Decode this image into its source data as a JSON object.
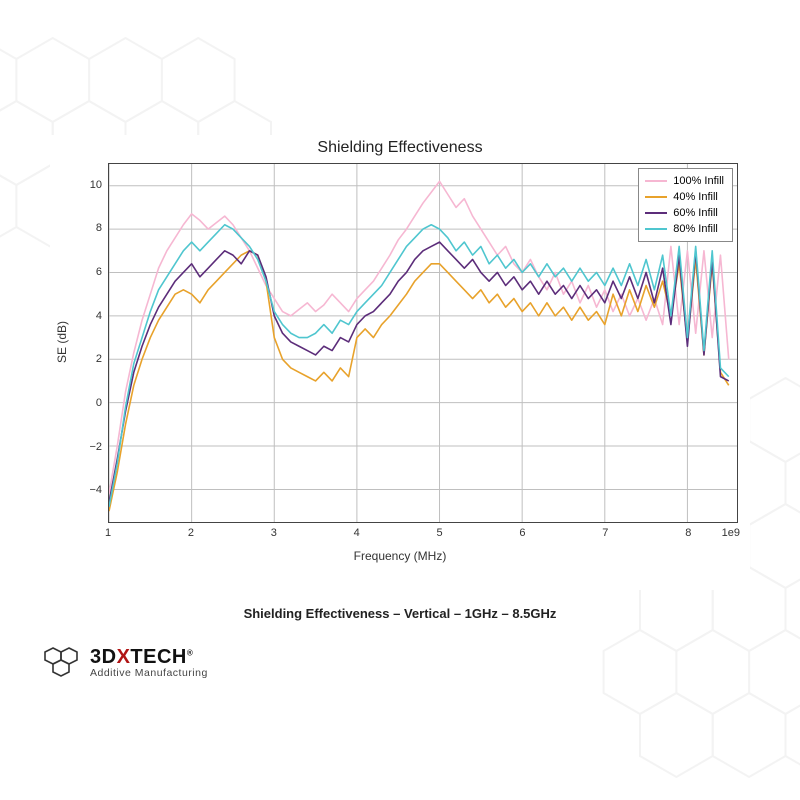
{
  "title": "Shielding Effectiveness",
  "subtitle": "Shielding Effectiveness – Vertical – 1GHz – 8.5GHz",
  "brand": {
    "prefix": "3D",
    "x": "X",
    "suffix": "TECH",
    "reg": "®",
    "tagline": "Additive Manufacturing"
  },
  "chart": {
    "type": "line",
    "xlabel": "Frequency (MHz)",
    "ylabel": "SE (dB)",
    "x_exponent_label": "1e9",
    "xlim": [
      1,
      8.6
    ],
    "ylim": [
      -5.5,
      11
    ],
    "xticks": [
      1,
      2,
      3,
      4,
      5,
      6,
      7,
      8
    ],
    "yticks": [
      -4,
      -2,
      0,
      2,
      4,
      6,
      8,
      10
    ],
    "background_color": "#ffffff",
    "grid_color": "#bfbfbf",
    "axis_color": "#444444",
    "title_fontsize": 16,
    "label_fontsize": 12,
    "tick_fontsize": 11,
    "line_width": 1.6,
    "legend": {
      "position": "upper-right",
      "border_color": "#888888",
      "items": [
        {
          "label": "100% Infill",
          "color": "#f6b7d2"
        },
        {
          "label": "40% Infill",
          "color": "#e8a22b"
        },
        {
          "label": "60% Infill",
          "color": "#5c2d7a"
        },
        {
          "label": "80% Infill",
          "color": "#4fc6cf"
        }
      ]
    },
    "series": [
      {
        "name": "100% Infill",
        "color": "#f6b7d2",
        "x": [
          1.0,
          1.1,
          1.2,
          1.3,
          1.4,
          1.5,
          1.6,
          1.7,
          1.8,
          1.9,
          2.0,
          2.1,
          2.2,
          2.3,
          2.4,
          2.5,
          2.6,
          2.7,
          2.8,
          2.9,
          3.0,
          3.1,
          3.2,
          3.3,
          3.4,
          3.5,
          3.6,
          3.7,
          3.8,
          3.9,
          4.0,
          4.1,
          4.2,
          4.3,
          4.4,
          4.5,
          4.6,
          4.7,
          4.8,
          4.9,
          5.0,
          5.1,
          5.2,
          5.3,
          5.4,
          5.5,
          5.6,
          5.7,
          5.8,
          5.9,
          6.0,
          6.1,
          6.2,
          6.3,
          6.4,
          6.5,
          6.6,
          6.7,
          6.8,
          6.9,
          7.0,
          7.1,
          7.2,
          7.3,
          7.4,
          7.5,
          7.6,
          7.7,
          7.8,
          7.9,
          8.0,
          8.1,
          8.2,
          8.3,
          8.4,
          8.5
        ],
        "y": [
          -4.2,
          -2.0,
          0.5,
          2.3,
          3.8,
          5.0,
          6.2,
          7.0,
          7.6,
          8.2,
          8.7,
          8.4,
          8.0,
          8.3,
          8.6,
          8.2,
          7.6,
          7.0,
          6.2,
          5.4,
          4.8,
          4.2,
          4.0,
          4.3,
          4.6,
          4.2,
          4.5,
          5.0,
          4.6,
          4.2,
          4.8,
          5.2,
          5.6,
          6.2,
          6.8,
          7.5,
          8.0,
          8.6,
          9.2,
          9.7,
          10.2,
          9.6,
          9.0,
          9.4,
          8.6,
          8.0,
          7.4,
          6.8,
          7.2,
          6.4,
          6.0,
          6.6,
          5.8,
          5.2,
          6.0,
          5.0,
          5.6,
          4.6,
          5.4,
          4.4,
          5.2,
          4.2,
          5.0,
          4.0,
          4.8,
          3.8,
          4.8,
          3.6,
          7.2,
          3.6,
          7.0,
          3.2,
          7.0,
          3.0,
          6.8,
          2.0
        ]
      },
      {
        "name": "40% Infill",
        "color": "#e8a22b",
        "x": [
          1.0,
          1.1,
          1.2,
          1.3,
          1.4,
          1.5,
          1.6,
          1.7,
          1.8,
          1.9,
          2.0,
          2.1,
          2.2,
          2.3,
          2.4,
          2.5,
          2.6,
          2.7,
          2.8,
          2.9,
          3.0,
          3.1,
          3.2,
          3.3,
          3.4,
          3.5,
          3.6,
          3.7,
          3.8,
          3.9,
          4.0,
          4.1,
          4.2,
          4.3,
          4.4,
          4.5,
          4.6,
          4.7,
          4.8,
          4.9,
          5.0,
          5.1,
          5.2,
          5.3,
          5.4,
          5.5,
          5.6,
          5.7,
          5.8,
          5.9,
          6.0,
          6.1,
          6.2,
          6.3,
          6.4,
          6.5,
          6.6,
          6.7,
          6.8,
          6.9,
          7.0,
          7.1,
          7.2,
          7.3,
          7.4,
          7.5,
          7.6,
          7.7,
          7.8,
          7.9,
          8.0,
          8.1,
          8.2,
          8.3,
          8.4,
          8.5
        ],
        "y": [
          -5.0,
          -3.2,
          -1.0,
          0.8,
          2.0,
          3.0,
          3.8,
          4.4,
          5.0,
          5.2,
          5.0,
          4.6,
          5.2,
          5.6,
          6.0,
          6.4,
          6.8,
          7.0,
          6.8,
          5.6,
          3.0,
          2.0,
          1.6,
          1.4,
          1.2,
          1.0,
          1.4,
          1.0,
          1.6,
          1.2,
          3.0,
          3.4,
          3.0,
          3.6,
          4.0,
          4.5,
          5.0,
          5.6,
          6.0,
          6.4,
          6.4,
          6.0,
          5.6,
          5.2,
          4.8,
          5.2,
          4.6,
          5.0,
          4.4,
          4.8,
          4.2,
          4.6,
          4.0,
          4.6,
          4.0,
          4.4,
          3.8,
          4.4,
          3.8,
          4.2,
          3.6,
          5.0,
          4.0,
          5.2,
          4.2,
          5.4,
          4.4,
          5.6,
          4.0,
          6.4,
          2.8,
          6.6,
          2.2,
          6.4,
          1.4,
          0.8
        ]
      },
      {
        "name": "60% Infill",
        "color": "#5c2d7a",
        "x": [
          1.0,
          1.1,
          1.2,
          1.3,
          1.4,
          1.5,
          1.6,
          1.7,
          1.8,
          1.9,
          2.0,
          2.1,
          2.2,
          2.3,
          2.4,
          2.5,
          2.6,
          2.7,
          2.8,
          2.9,
          3.0,
          3.1,
          3.2,
          3.3,
          3.4,
          3.5,
          3.6,
          3.7,
          3.8,
          3.9,
          4.0,
          4.1,
          4.2,
          4.3,
          4.4,
          4.5,
          4.6,
          4.7,
          4.8,
          4.9,
          5.0,
          5.1,
          5.2,
          5.3,
          5.4,
          5.5,
          5.6,
          5.7,
          5.8,
          5.9,
          6.0,
          6.1,
          6.2,
          6.3,
          6.4,
          6.5,
          6.6,
          6.7,
          6.8,
          6.9,
          7.0,
          7.1,
          7.2,
          7.3,
          7.4,
          7.5,
          7.6,
          7.7,
          7.8,
          7.9,
          8.0,
          8.1,
          8.2,
          8.3,
          8.4,
          8.5
        ],
        "y": [
          -4.6,
          -2.6,
          -0.4,
          1.4,
          2.6,
          3.6,
          4.4,
          5.0,
          5.6,
          6.0,
          6.4,
          5.8,
          6.2,
          6.6,
          7.0,
          6.8,
          6.4,
          7.0,
          6.8,
          5.8,
          4.0,
          3.2,
          2.8,
          2.6,
          2.4,
          2.2,
          2.6,
          2.4,
          3.0,
          2.8,
          3.6,
          4.0,
          4.2,
          4.6,
          5.0,
          5.6,
          6.0,
          6.6,
          7.0,
          7.2,
          7.4,
          7.0,
          6.6,
          6.2,
          6.6,
          6.0,
          5.6,
          6.0,
          5.4,
          5.8,
          5.2,
          5.6,
          5.0,
          5.6,
          5.0,
          5.4,
          4.8,
          5.4,
          4.8,
          5.2,
          4.6,
          5.6,
          4.8,
          5.8,
          4.8,
          6.0,
          4.6,
          6.2,
          3.6,
          6.8,
          2.6,
          7.0,
          2.2,
          6.6,
          1.2,
          1.0
        ]
      },
      {
        "name": "80% Infill",
        "color": "#4fc6cf",
        "x": [
          1.0,
          1.1,
          1.2,
          1.3,
          1.4,
          1.5,
          1.6,
          1.7,
          1.8,
          1.9,
          2.0,
          2.1,
          2.2,
          2.3,
          2.4,
          2.5,
          2.6,
          2.7,
          2.8,
          2.9,
          3.0,
          3.1,
          3.2,
          3.3,
          3.4,
          3.5,
          3.6,
          3.7,
          3.8,
          3.9,
          4.0,
          4.1,
          4.2,
          4.3,
          4.4,
          4.5,
          4.6,
          4.7,
          4.8,
          4.9,
          5.0,
          5.1,
          5.2,
          5.3,
          5.4,
          5.5,
          5.6,
          5.7,
          5.8,
          5.9,
          6.0,
          6.1,
          6.2,
          6.3,
          6.4,
          6.5,
          6.6,
          6.7,
          6.8,
          6.9,
          7.0,
          7.1,
          7.2,
          7.3,
          7.4,
          7.5,
          7.6,
          7.7,
          7.8,
          7.9,
          8.0,
          8.1,
          8.2,
          8.3,
          8.4,
          8.5
        ],
        "y": [
          -4.8,
          -2.8,
          -0.2,
          1.8,
          3.0,
          4.2,
          5.2,
          5.8,
          6.4,
          7.0,
          7.4,
          7.0,
          7.4,
          7.8,
          8.2,
          8.0,
          7.6,
          7.2,
          6.6,
          5.6,
          4.2,
          3.6,
          3.2,
          3.0,
          3.0,
          3.2,
          3.6,
          3.2,
          3.8,
          3.6,
          4.2,
          4.6,
          5.0,
          5.4,
          6.0,
          6.6,
          7.2,
          7.6,
          8.0,
          8.2,
          8.0,
          7.6,
          7.0,
          7.4,
          6.8,
          7.2,
          6.4,
          6.8,
          6.2,
          6.6,
          6.0,
          6.4,
          5.8,
          6.4,
          5.8,
          6.2,
          5.6,
          6.2,
          5.6,
          6.0,
          5.4,
          6.2,
          5.4,
          6.4,
          5.4,
          6.6,
          5.2,
          6.8,
          4.0,
          7.2,
          3.0,
          7.2,
          2.4,
          7.0,
          1.6,
          1.2
        ]
      }
    ]
  },
  "background": {
    "hex_stroke": "#e8e8e8",
    "hex_stroke_width": 2
  }
}
